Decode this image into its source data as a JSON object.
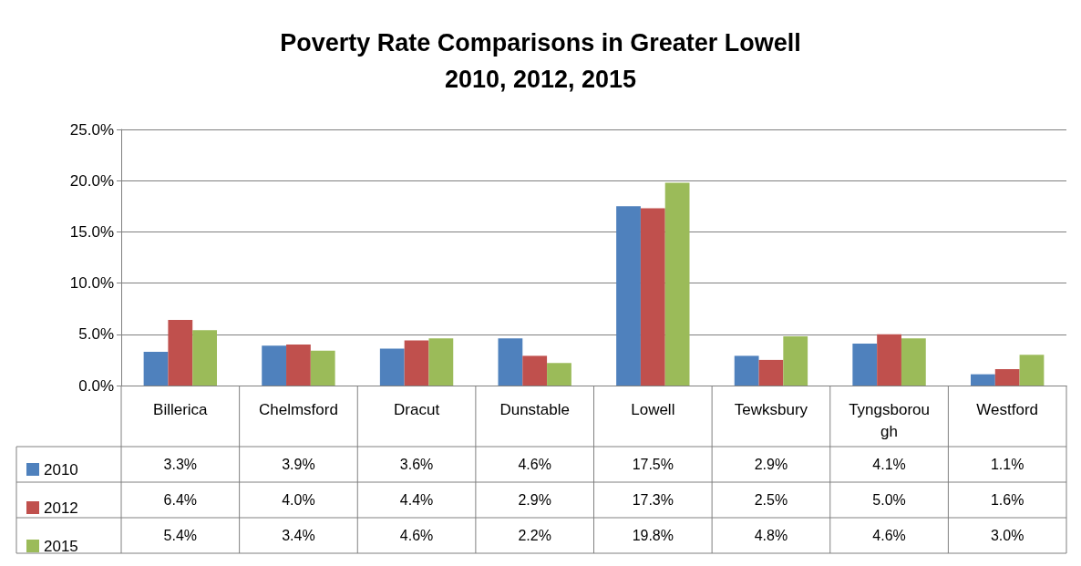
{
  "chart_data": {
    "type": "bar",
    "title": "Poverty Rate Comparisons in Greater Lowell",
    "subtitle": "2010, 2012, 2015",
    "categories": [
      "Billerica",
      "Chelmsford",
      "Dracut",
      "Dunstable",
      "Lowell",
      "Tewksbury",
      "Tyngsborough",
      "Westford"
    ],
    "series": [
      {
        "name": "2010",
        "color": "#4f81bd",
        "values": [
          3.3,
          3.9,
          3.6,
          4.6,
          17.5,
          2.9,
          4.1,
          1.1
        ],
        "value_labels": [
          "3.3%",
          "3.9%",
          "3.6%",
          "4.6%",
          "17.5%",
          "2.9%",
          "4.1%",
          "1.1%"
        ]
      },
      {
        "name": "2012",
        "color": "#c0504d",
        "values": [
          6.4,
          4.0,
          4.4,
          2.9,
          17.3,
          2.5,
          5.0,
          1.6
        ],
        "value_labels": [
          "6.4%",
          "4.0%",
          "4.4%",
          "2.9%",
          "17.3%",
          "2.5%",
          "5.0%",
          "1.6%"
        ]
      },
      {
        "name": "2015",
        "color": "#9bbb59",
        "values": [
          5.4,
          3.4,
          4.6,
          2.2,
          19.8,
          4.8,
          4.6,
          3.0
        ],
        "value_labels": [
          "5.4%",
          "3.4%",
          "4.6%",
          "2.2%",
          "19.8%",
          "4.8%",
          "4.6%",
          "3.0%"
        ]
      }
    ],
    "ylim": [
      0,
      25
    ],
    "yticks": [
      {
        "value": 0,
        "label": "0.0%"
      },
      {
        "value": 5,
        "label": "5.0%"
      },
      {
        "value": 10,
        "label": "10.0%"
      },
      {
        "value": 15,
        "label": "15.0%"
      },
      {
        "value": 20,
        "label": "20.0%"
      },
      {
        "value": 25,
        "label": "25.0%"
      }
    ],
    "grid": "y",
    "legend": "bottom left"
  }
}
